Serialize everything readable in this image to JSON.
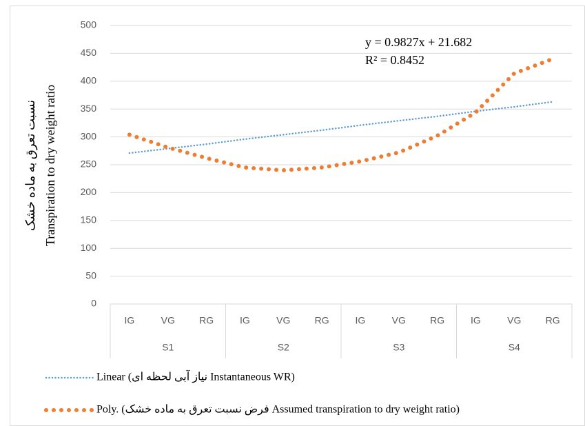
{
  "chart_data": {
    "type": "line",
    "y_label": [
      "نسبت تعرق به ماده خشک",
      "Transpiration to dry weight ratio"
    ],
    "annotations": [
      "y = 0.9827x + 21.682",
      "R² = 0.8452"
    ],
    "categories": [
      "IG",
      "VG",
      "RG",
      "IG",
      "VG",
      "RG",
      "IG",
      "VG",
      "RG",
      "IG",
      "VG",
      "RG"
    ],
    "groups": [
      "S1",
      "S2",
      "S3",
      "S4"
    ],
    "series": [
      {
        "name": "Linear (نیاز آبی لحظه ای Instantaneous WR)",
        "color": "#5b9bd5",
        "style": "small-dots",
        "values": [
          271,
          279,
          287,
          296,
          304,
          312,
          321,
          329,
          337,
          346,
          354,
          363
        ]
      },
      {
        "name": "Poly. (فرض نسبت تعرق به ماده خشک Assumed transpiration to dry weight ratio)",
        "color": "#ed7d31",
        "style": "large-dots",
        "values": [
          304,
          281,
          262,
          245,
          240,
          245,
          256,
          272,
          302,
          344,
          414,
          440
        ]
      }
    ],
    "ylim": [
      0,
      500
    ],
    "yticks": [
      0,
      50,
      100,
      150,
      200,
      250,
      300,
      350,
      400,
      450,
      500
    ],
    "grid": true
  }
}
